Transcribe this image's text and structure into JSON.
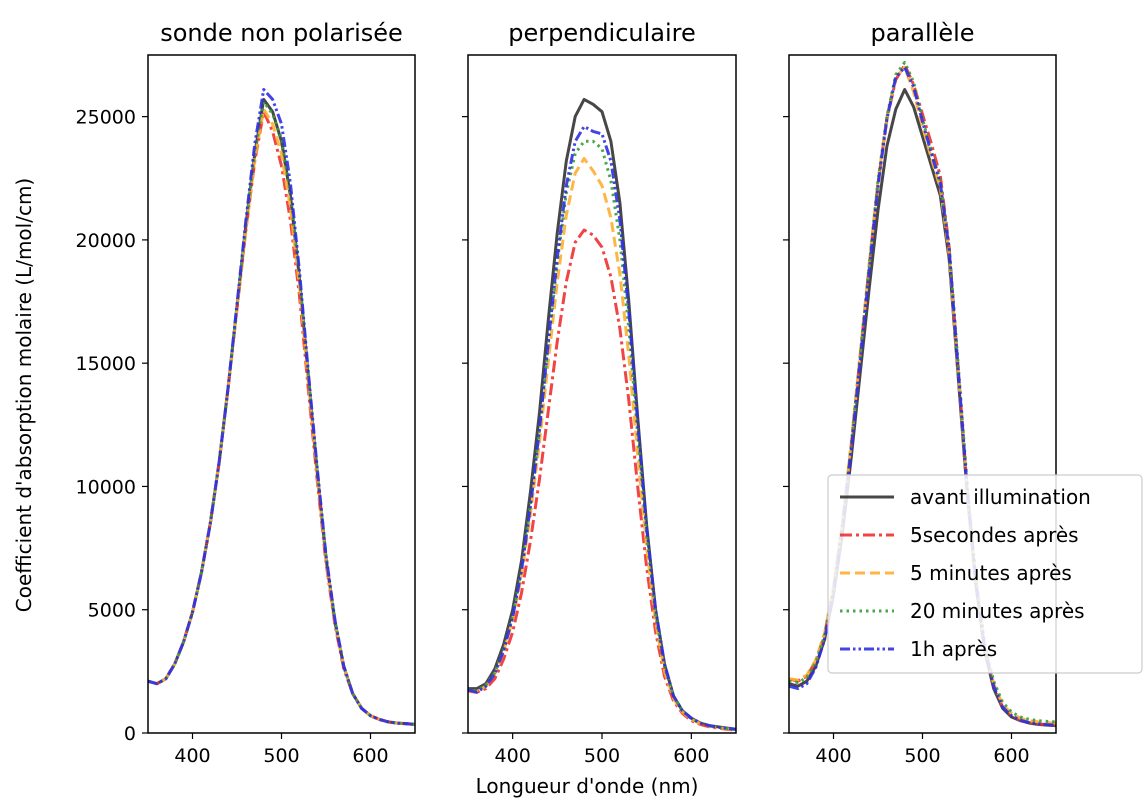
{
  "figure": {
    "ylabel": "Coefficient d'absorption molaire (L/mol/cm)",
    "xlabel": "Longueur d'onde (nm)"
  },
  "legend": {
    "placement": "lower-right of third panel",
    "entries": [
      {
        "label": "avant illumination",
        "color": "#333333",
        "style": "solid"
      },
      {
        "label": "5secondes après",
        "color": "#f03030",
        "style": "dashdot"
      },
      {
        "label": "5 minutes après",
        "color": "#ffae33",
        "style": "dashed"
      },
      {
        "label": "20 minutes après",
        "color": "#33a033",
        "style": "dotted"
      },
      {
        "label": "1h après",
        "color": "#2f2fe6",
        "style": "dashdotdot"
      }
    ]
  },
  "chart_data": [
    {
      "type": "line",
      "title": "sonde non polarisée",
      "xlim": [
        350,
        650
      ],
      "ylim": [
        0,
        27500
      ],
      "xticks": [
        400,
        500,
        600
      ],
      "yticks": [
        0,
        5000,
        10000,
        15000,
        20000,
        25000
      ],
      "grid": false,
      "x": [
        350,
        360,
        370,
        380,
        390,
        400,
        410,
        420,
        430,
        440,
        450,
        460,
        470,
        480,
        490,
        500,
        510,
        520,
        530,
        540,
        550,
        560,
        570,
        580,
        590,
        600,
        610,
        620,
        630,
        640,
        650
      ],
      "series": [
        {
          "name": "avant illumination",
          "values": [
            2100,
            2000,
            2200,
            2800,
            3700,
            4900,
            6500,
            8500,
            11000,
            14000,
            17300,
            20600,
            23500,
            25700,
            25200,
            24000,
            21800,
            18500,
            14500,
            10600,
            7100,
            4500,
            2700,
            1600,
            1000,
            700,
            550,
            450,
            400,
            380,
            350
          ]
        },
        {
          "name": "5secondes après",
          "values": [
            2100,
            2000,
            2200,
            2800,
            3700,
            4900,
            6500,
            8500,
            11000,
            14000,
            17200,
            20400,
            23200,
            25200,
            24400,
            23000,
            20800,
            17800,
            14000,
            10300,
            6900,
            4400,
            2600,
            1600,
            1000,
            700,
            550,
            450,
            400,
            370,
            340
          ]
        },
        {
          "name": "5 minutes après",
          "values": [
            2100,
            2000,
            2200,
            2800,
            3700,
            4900,
            6500,
            8500,
            11000,
            14000,
            17200,
            20400,
            23300,
            25300,
            24700,
            23500,
            21300,
            18200,
            14300,
            10500,
            7000,
            4500,
            2700,
            1600,
            1000,
            700,
            550,
            450,
            400,
            370,
            340
          ]
        },
        {
          "name": "20 minutes après",
          "values": [
            2100,
            2000,
            2200,
            2800,
            3700,
            4900,
            6500,
            8500,
            11000,
            14000,
            17300,
            20600,
            23600,
            25600,
            25100,
            24100,
            21900,
            18600,
            14600,
            10700,
            7200,
            4600,
            2700,
            1600,
            1000,
            700,
            550,
            450,
            400,
            380,
            350
          ]
        },
        {
          "name": "1h après",
          "values": [
            2100,
            2000,
            2200,
            2800,
            3700,
            4900,
            6500,
            8500,
            11000,
            14000,
            17400,
            20800,
            23900,
            26100,
            25700,
            24700,
            22300,
            18800,
            14700,
            10800,
            7200,
            4600,
            2700,
            1600,
            1000,
            700,
            550,
            450,
            400,
            380,
            350
          ]
        }
      ]
    },
    {
      "type": "line",
      "title": "perpendiculaire",
      "xlim": [
        350,
        650
      ],
      "ylim": [
        0,
        27500
      ],
      "xticks": [
        400,
        500,
        600
      ],
      "yticks": [
        0,
        5000,
        10000,
        15000,
        20000,
        25000
      ],
      "grid": false,
      "x": [
        350,
        360,
        370,
        380,
        390,
        400,
        410,
        420,
        430,
        440,
        450,
        460,
        470,
        480,
        490,
        500,
        510,
        520,
        530,
        540,
        550,
        560,
        570,
        580,
        590,
        600,
        610,
        620,
        630,
        640,
        650
      ],
      "series": [
        {
          "name": "avant illumination",
          "values": [
            1800,
            1800,
            2000,
            2600,
            3600,
            5000,
            7000,
            9800,
            13000,
            16800,
            20300,
            23200,
            25000,
            25700,
            25500,
            25200,
            24000,
            21500,
            17500,
            12800,
            8400,
            5000,
            2800,
            1500,
            900,
            600,
            400,
            300,
            250,
            200,
            150
          ]
        },
        {
          "name": "5secondes après",
          "values": [
            1700,
            1650,
            1800,
            2200,
            3000,
            4100,
            5700,
            7800,
            10300,
            13100,
            15900,
            18300,
            19900,
            20400,
            20200,
            19700,
            18500,
            16400,
            13500,
            10000,
            6700,
            4100,
            2300,
            1300,
            800,
            500,
            350,
            250,
            200,
            150,
            120
          ]
        },
        {
          "name": "5 minutes après",
          "values": [
            1700,
            1700,
            1900,
            2400,
            3300,
            4600,
            6400,
            8900,
            11800,
            15100,
            18300,
            21000,
            22700,
            23300,
            22800,
            22200,
            20900,
            18600,
            15300,
            11300,
            7500,
            4500,
            2500,
            1400,
            850,
            550,
            380,
            280,
            220,
            170,
            130
          ]
        },
        {
          "name": "20 minutes après",
          "values": [
            1750,
            1700,
            1950,
            2450,
            3400,
            4750,
            6650,
            9300,
            12300,
            15800,
            19100,
            21900,
            23500,
            24000,
            24000,
            23700,
            22400,
            20000,
            16400,
            12100,
            8000,
            4800,
            2700,
            1500,
            900,
            580,
            400,
            290,
            230,
            180,
            140
          ]
        },
        {
          "name": "1h après",
          "values": [
            1750,
            1650,
            1900,
            2400,
            3350,
            4700,
            6600,
            9200,
            12300,
            15900,
            19300,
            22200,
            24000,
            24600,
            24400,
            24300,
            23200,
            20800,
            17100,
            12600,
            8300,
            5000,
            2800,
            1500,
            900,
            600,
            400,
            300,
            240,
            190,
            150
          ]
        }
      ]
    },
    {
      "type": "line",
      "title": "parallèle",
      "xlim": [
        350,
        650
      ],
      "ylim": [
        0,
        27500
      ],
      "xticks": [
        400,
        500,
        600
      ],
      "yticks": [
        0,
        5000,
        10000,
        15000,
        20000,
        25000
      ],
      "grid": false,
      "x": [
        350,
        360,
        370,
        380,
        390,
        400,
        410,
        420,
        430,
        440,
        450,
        460,
        470,
        480,
        490,
        500,
        510,
        520,
        530,
        540,
        550,
        560,
        570,
        580,
        590,
        600,
        610,
        620,
        630,
        640,
        650
      ],
      "series": [
        {
          "name": "avant illumination",
          "values": [
            2000,
            1900,
            2100,
            2700,
            3800,
            5600,
            8100,
            11200,
            14600,
            18000,
            21200,
            23800,
            25300,
            26100,
            25400,
            24200,
            23000,
            21800,
            19200,
            14500,
            9800,
            6000,
            3300,
            1800,
            1000,
            650,
            500,
            400,
            350,
            320,
            300
          ]
        },
        {
          "name": "5secondes après",
          "values": [
            2200,
            2100,
            2300,
            2900,
            4000,
            5900,
            8500,
            11700,
            15300,
            18900,
            22300,
            24900,
            26500,
            27100,
            26300,
            25100,
            23900,
            22600,
            19700,
            14800,
            10000,
            6100,
            3400,
            1900,
            1050,
            700,
            520,
            420,
            370,
            340,
            320
          ]
        },
        {
          "name": "5 minutes après",
          "values": [
            2200,
            2150,
            2350,
            2950,
            4050,
            5950,
            8550,
            11800,
            15400,
            19000,
            22400,
            25000,
            26600,
            27000,
            26000,
            24600,
            23300,
            22100,
            19400,
            14700,
            10000,
            6200,
            3500,
            2000,
            1150,
            800,
            600,
            500,
            450,
            420,
            400
          ]
        },
        {
          "name": "20 minutes après",
          "values": [
            2100,
            2050,
            2250,
            2850,
            3950,
            5850,
            8450,
            11700,
            15300,
            18900,
            22400,
            25000,
            26700,
            27200,
            26400,
            24900,
            23600,
            22400,
            19700,
            15000,
            10200,
            6300,
            3600,
            2100,
            1250,
            850,
            650,
            550,
            500,
            470,
            450
          ]
        },
        {
          "name": "1h après",
          "values": [
            1900,
            1800,
            2000,
            2650,
            3800,
            5700,
            8300,
            11500,
            15100,
            18700,
            22200,
            24900,
            26600,
            27000,
            26200,
            24800,
            23500,
            22300,
            19600,
            14800,
            10000,
            6100,
            3400,
            1900,
            1050,
            700,
            520,
            420,
            370,
            340,
            320
          ]
        }
      ]
    }
  ]
}
